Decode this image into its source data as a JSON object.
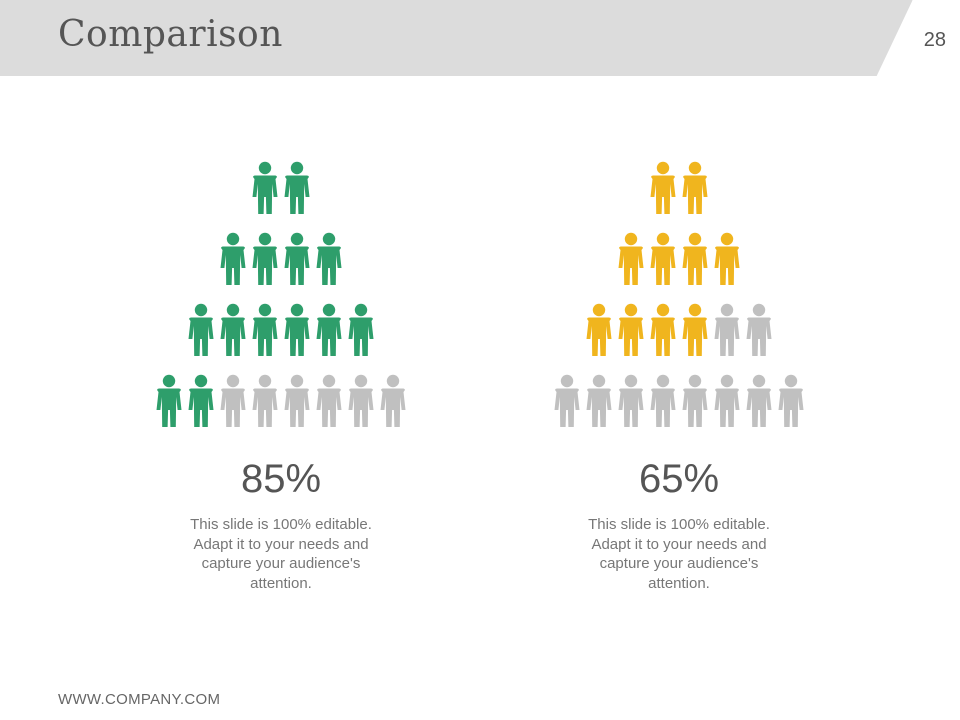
{
  "slide": {
    "title": "Comparison",
    "number": "28",
    "footer": "WWW.COMPANY.COM"
  },
  "colors": {
    "header_bg": "#dcdcdc",
    "inactive_icon": "#c0c0c0",
    "green": "#2e9e6b",
    "yellow": "#f0b51e"
  },
  "icons": {
    "person": "person-icon"
  },
  "comparisons": [
    {
      "percent": "85%",
      "description": "This slide is 100% editable. Adapt it to your needs and capture your audience's attention.",
      "color": "#2e9e6b",
      "rows": [
        {
          "total": 2,
          "filled": 2
        },
        {
          "total": 4,
          "filled": 4
        },
        {
          "total": 6,
          "filled": 6
        },
        {
          "total": 8,
          "filled": 2
        }
      ]
    },
    {
      "percent": "65%",
      "description": "This slide is 100% editable. Adapt it to your needs and capture your audience's attention.",
      "color": "#f0b51e",
      "rows": [
        {
          "total": 2,
          "filled": 2
        },
        {
          "total": 4,
          "filled": 4
        },
        {
          "total": 6,
          "filled": 4
        },
        {
          "total": 8,
          "filled": 0
        }
      ]
    }
  ]
}
